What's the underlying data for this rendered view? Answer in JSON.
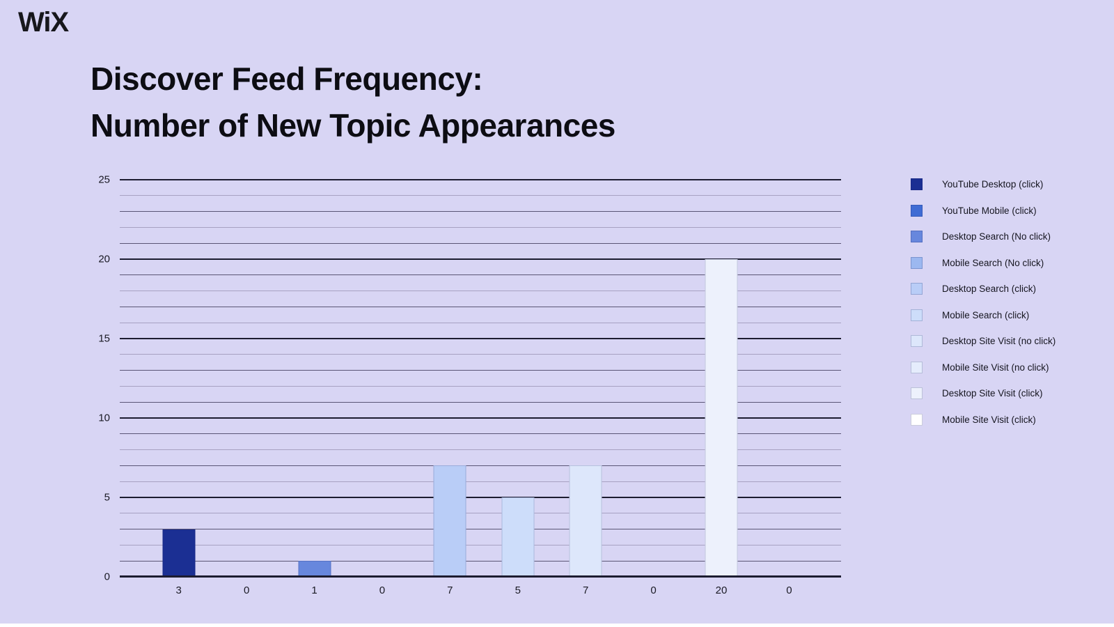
{
  "logo": {
    "text": "WiX"
  },
  "title": {
    "line1": "Discover Feed Frequency:",
    "line2": "Number of New Topic Appearances"
  },
  "colors": {
    "background": "#d8d5f4",
    "title_text": "#0d0d13",
    "axis_text": "#1a1a24",
    "major_gridline": "#1c1c30",
    "minor_gridline_dark": "#5a5575",
    "minor_gridline_light": "#a7a1c2",
    "bottom_strip": "#ffffff"
  },
  "chart_data": {
    "type": "bar",
    "title": "Discover Feed Frequency: Number of New Topic Appearances",
    "categories": [
      "YouTube Desktop (click)",
      "YouTube Mobile (click)",
      "Desktop Search (No click)",
      "Mobile Search (No click)",
      "Desktop Search (click)",
      "Mobile Search (click)",
      "Desktop Site Visit (no click)",
      "Mobile Site Visit (no click)",
      "Desktop Site Visit (click)",
      "Mobile Site Visit (click)"
    ],
    "values": [
      3,
      0,
      1,
      0,
      7,
      5,
      7,
      0,
      20,
      0
    ],
    "x_tick_labels": [
      "3",
      "0",
      "1",
      "0",
      "7",
      "5",
      "7",
      "0",
      "20",
      "0"
    ],
    "bar_colors": [
      "#1b2f93",
      "#3f6cd4",
      "#6787dd",
      "#9cb8f0",
      "#b9cdf7",
      "#cdddfa",
      "#dde7fb",
      "#e5ecfc",
      "#edf1fc",
      "#ffffff"
    ],
    "xlabel": "",
    "ylabel": "",
    "yticks": [
      0,
      5,
      10,
      15,
      20,
      25
    ],
    "ylim": [
      0,
      25
    ],
    "grid": "horizontal minor lines every 1 unit, major lines every 5 units",
    "legend_position": "right",
    "legend": [
      {
        "label": "YouTube Desktop (click)",
        "color": "#1b2f93"
      },
      {
        "label": "YouTube Mobile (click)",
        "color": "#3f6cd4"
      },
      {
        "label": "Desktop Search (No click)",
        "color": "#6787dd"
      },
      {
        "label": "Mobile Search (No click)",
        "color": "#9cb8f0"
      },
      {
        "label": "Desktop Search (click)",
        "color": "#b9cdf7"
      },
      {
        "label": "Mobile Search (click)",
        "color": "#cdddfa"
      },
      {
        "label": "Desktop Site Visit (no click)",
        "color": "#dde7fb"
      },
      {
        "label": "Mobile Site Visit (no click)",
        "color": "#e5ecfc"
      },
      {
        "label": "Desktop Site Visit (click)",
        "color": "#edf1fc"
      },
      {
        "label": "Mobile Site Visit (click)",
        "color": "#ffffff"
      }
    ]
  }
}
